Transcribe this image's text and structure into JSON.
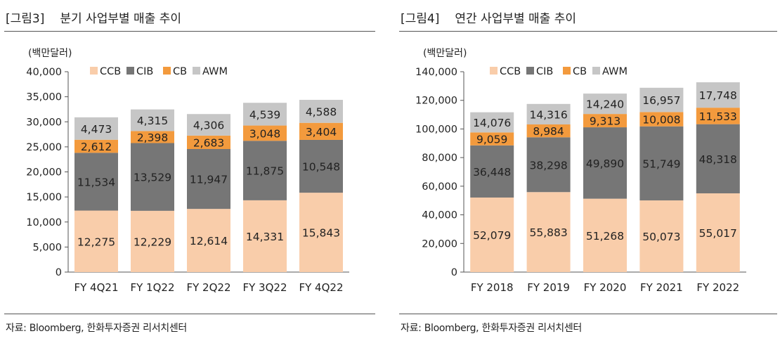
{
  "figures": [
    {
      "fig_label": "[그림3]",
      "title": "분기 사업부별 매출 추이",
      "source": "자료: Bloomberg, 한화투자증권 리서치센터",
      "chart_data": {
        "type": "bar",
        "stacked": true,
        "unit_label": "(백만달러)",
        "categories": [
          "FY 4Q21",
          "FY 1Q22",
          "FY 2Q22",
          "FY 3Q22",
          "FY 4Q22"
        ],
        "ylim": [
          0,
          40000
        ],
        "yticks": [
          0,
          5000,
          10000,
          15000,
          20000,
          25000,
          30000,
          35000,
          40000
        ],
        "ytick_labels": [
          "0",
          "5,000",
          "10,000",
          "15,000",
          "20,000",
          "25,000",
          "30,000",
          "35,000",
          "40,000"
        ],
        "grid": false,
        "legend_position": "top",
        "series": [
          {
            "name": "CCB",
            "color": "#F9CDAA",
            "values": [
              12275,
              12229,
              12614,
              14331,
              15843
            ],
            "labels": [
              "12,275",
              "12,229",
              "12,614",
              "14,331",
              "15,843"
            ]
          },
          {
            "name": "CIB",
            "color": "#767676",
            "values": [
              11534,
              13529,
              11947,
              11875,
              10548
            ],
            "labels": [
              "11,534",
              "13,529",
              "11,947",
              "11,875",
              "10,548"
            ]
          },
          {
            "name": "CB",
            "color": "#F39A3D",
            "values": [
              2612,
              2398,
              2683,
              3048,
              3404
            ],
            "labels": [
              "2,612",
              "2,398",
              "2,683",
              "3,048",
              "3,404"
            ]
          },
          {
            "name": "AWM",
            "color": "#C6C6C6",
            "values": [
              4473,
              4315,
              4306,
              4539,
              4588
            ],
            "labels": [
              "4,473",
              "4,315",
              "4,306",
              "4,539",
              "4,588"
            ]
          }
        ]
      }
    },
    {
      "fig_label": "[그림4]",
      "title": "연간 사업부별 매출 추이",
      "source": "자료: Bloomberg, 한화투자증권 리서치센터",
      "chart_data": {
        "type": "bar",
        "stacked": true,
        "unit_label": "(백만달러)",
        "categories": [
          "FY 2018",
          "FY 2019",
          "FY 2020",
          "FY 2021",
          "FY 2022"
        ],
        "ylim": [
          0,
          140000
        ],
        "yticks": [
          0,
          20000,
          40000,
          60000,
          80000,
          100000,
          120000,
          140000
        ],
        "ytick_labels": [
          "0",
          "20,000",
          "40,000",
          "60,000",
          "80,000",
          "100,000",
          "120,000",
          "140,000"
        ],
        "grid": false,
        "legend_position": "top",
        "series": [
          {
            "name": "CCB",
            "color": "#F9CDAA",
            "values": [
              52079,
              55883,
              51268,
              50073,
              55017
            ],
            "labels": [
              "52,079",
              "55,883",
              "51,268",
              "50,073",
              "55,017"
            ]
          },
          {
            "name": "CIB",
            "color": "#767676",
            "values": [
              36448,
              38298,
              49890,
              51749,
              48318
            ],
            "labels": [
              "36,448",
              "38,298",
              "49,890",
              "51,749",
              "48,318"
            ]
          },
          {
            "name": "CB",
            "color": "#F39A3D",
            "values": [
              9059,
              8984,
              9313,
              10008,
              11533
            ],
            "labels": [
              "9,059",
              "8,984",
              "9,313",
              "10,008",
              "11,533"
            ]
          },
          {
            "name": "AWM",
            "color": "#C6C6C6",
            "values": [
              14076,
              14316,
              14240,
              16957,
              17748
            ],
            "labels": [
              "14,076",
              "14,316",
              "14,240",
              "16,957",
              "17,748"
            ]
          }
        ]
      }
    }
  ]
}
